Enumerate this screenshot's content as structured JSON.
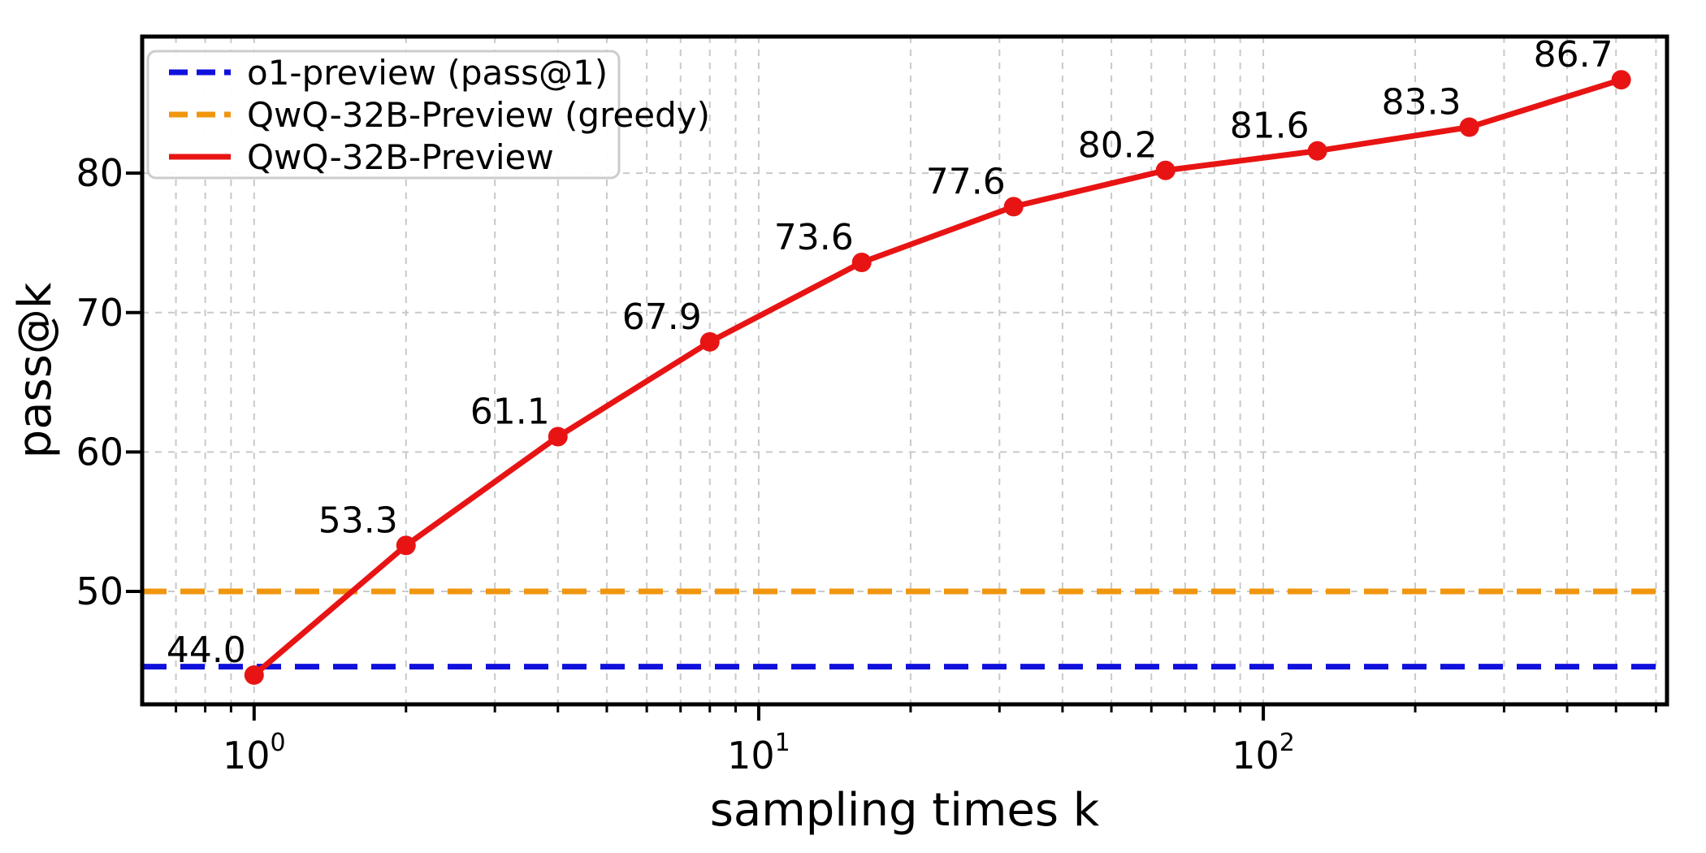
{
  "chart_data": {
    "type": "line",
    "title": "",
    "xlabel": "sampling times k",
    "ylabel": "pass@k",
    "x_scale": "log",
    "grid": true,
    "xlim": [
      0.6,
      631
    ],
    "ylim": [
      41.9,
      89.8
    ],
    "y_ticks": [
      50,
      60,
      70,
      80
    ],
    "x_major_ticks": [
      {
        "value": 1,
        "label_base": "10",
        "label_exp": "0"
      },
      {
        "value": 10,
        "label_base": "10",
        "label_exp": "1"
      },
      {
        "value": 100,
        "label_base": "10",
        "label_exp": "2"
      }
    ],
    "series": [
      {
        "name": "QwQ-32B-Preview",
        "color": "#e81414",
        "line_style": "solid",
        "marker": "circle",
        "x": [
          1,
          2,
          4,
          8,
          16,
          32,
          64,
          128,
          256,
          512
        ],
        "y": [
          44.0,
          53.3,
          61.1,
          67.9,
          73.6,
          77.6,
          80.2,
          81.6,
          83.3,
          86.7
        ],
        "point_labels": [
          "44.0",
          "53.3",
          "61.1",
          "67.9",
          "73.6",
          "77.6",
          "80.2",
          "81.6",
          "83.3",
          "86.7"
        ]
      }
    ],
    "hlines": [
      {
        "name": "o1-preview (pass@1)",
        "value": 44.6,
        "color": "#1010dd",
        "line_style": "dashed"
      },
      {
        "name": "QwQ-32B-Preview (greedy)",
        "value": 50.0,
        "color": "#f0960e",
        "line_style": "dashed"
      }
    ],
    "legend": {
      "position": "upper left",
      "entries": [
        {
          "label": "o1-preview (pass@1)",
          "color": "#1010dd",
          "line_style": "dashed"
        },
        {
          "label": "QwQ-32B-Preview (greedy)",
          "color": "#f0960e",
          "line_style": "dashed"
        },
        {
          "label": "QwQ-32B-Preview",
          "color": "#e81414",
          "line_style": "solid"
        }
      ]
    },
    "colors": {
      "grid": "#c9c9c9",
      "spine": "#000000",
      "background": "#ffffff",
      "text": "#000000"
    }
  }
}
